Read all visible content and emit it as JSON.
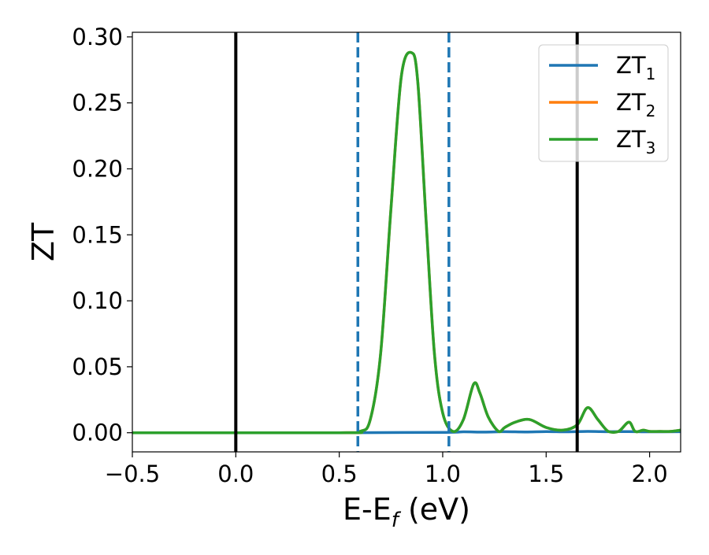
{
  "chart_data": {
    "type": "line",
    "xlabel": "E-E",
    "xlabel_sub": "f",
    "xlabel_unit": " (eV)",
    "ylabel": "ZT",
    "xlim": [
      -0.5,
      2.15
    ],
    "ylim": [
      -0.0145,
      0.3035
    ],
    "x_ticks": [
      -0.5,
      0.0,
      0.5,
      1.0,
      1.5,
      2.0
    ],
    "x_tick_labels": [
      "−0.5",
      "0.0",
      "0.5",
      "1.0",
      "1.5",
      "2.0"
    ],
    "y_ticks": [
      0.0,
      0.05,
      0.1,
      0.15,
      0.2,
      0.25,
      0.3
    ],
    "y_tick_labels": [
      "0.00",
      "0.05",
      "0.10",
      "0.15",
      "0.20",
      "0.25",
      "0.30"
    ],
    "grid": false,
    "legend_position": "top-right",
    "vertical_lines": [
      {
        "x": 0.0,
        "style": "solid",
        "color": "#000000"
      },
      {
        "x": 1.65,
        "style": "solid",
        "color": "#000000"
      },
      {
        "x": 0.59,
        "style": "dashed",
        "color": "#1f77b4"
      },
      {
        "x": 1.03,
        "style": "dashed",
        "color": "#1f77b4"
      }
    ],
    "series": [
      {
        "name": "ZT",
        "subscript": "1",
        "color": "#1f77b4",
        "x": [
          -0.5,
          0.5,
          1.0,
          1.1,
          1.2,
          1.3,
          1.4,
          1.5,
          1.6,
          1.7,
          1.8,
          1.9,
          2.0,
          2.15
        ],
        "y": [
          0,
          0,
          0.0003,
          0.0007,
          0.0005,
          0.0008,
          0.0006,
          0.0009,
          0.0007,
          0.001,
          0.0008,
          0.0009,
          0.0007,
          0.0008
        ]
      },
      {
        "name": "ZT",
        "subscript": "2",
        "color": "#ff7f0e",
        "x": [
          -0.5,
          0.5,
          0.6,
          0.65,
          0.7,
          0.75,
          0.8,
          0.85,
          0.88,
          0.92,
          0.96,
          1.0,
          1.05,
          1.1,
          1.15,
          1.18,
          1.22,
          1.27,
          1.3,
          1.35,
          1.42,
          1.5,
          1.58,
          1.65,
          1.7,
          1.75,
          1.8,
          1.85,
          1.9,
          1.93,
          1.97,
          2.0,
          2.05,
          2.1,
          2.15
        ],
        "y": [
          0,
          0,
          0.001,
          0.01,
          0.06,
          0.17,
          0.27,
          0.288,
          0.265,
          0.16,
          0.06,
          0.015,
          0.001,
          0.01,
          0.037,
          0.03,
          0.012,
          0.001,
          0.004,
          0.008,
          0.01,
          0.004,
          0.002,
          0.006,
          0.019,
          0.01,
          0.001,
          0.001,
          0.008,
          0.001,
          0.002,
          0.001,
          0.001,
          0.001,
          0.002
        ]
      },
      {
        "name": "ZT",
        "subscript": "3",
        "color": "#2ca02c",
        "x": [
          -0.5,
          0.5,
          0.6,
          0.65,
          0.7,
          0.75,
          0.8,
          0.85,
          0.88,
          0.92,
          0.96,
          1.0,
          1.05,
          1.1,
          1.15,
          1.18,
          1.22,
          1.27,
          1.3,
          1.35,
          1.42,
          1.5,
          1.58,
          1.65,
          1.7,
          1.75,
          1.8,
          1.85,
          1.9,
          1.93,
          1.97,
          2.0,
          2.05,
          2.1,
          2.15
        ],
        "y": [
          0,
          0,
          0.001,
          0.01,
          0.06,
          0.17,
          0.27,
          0.288,
          0.265,
          0.16,
          0.06,
          0.015,
          0.001,
          0.01,
          0.037,
          0.03,
          0.012,
          0.001,
          0.004,
          0.008,
          0.01,
          0.004,
          0.002,
          0.006,
          0.019,
          0.01,
          0.001,
          0.001,
          0.008,
          0.001,
          0.002,
          0.001,
          0.001,
          0.001,
          0.002
        ]
      }
    ]
  }
}
